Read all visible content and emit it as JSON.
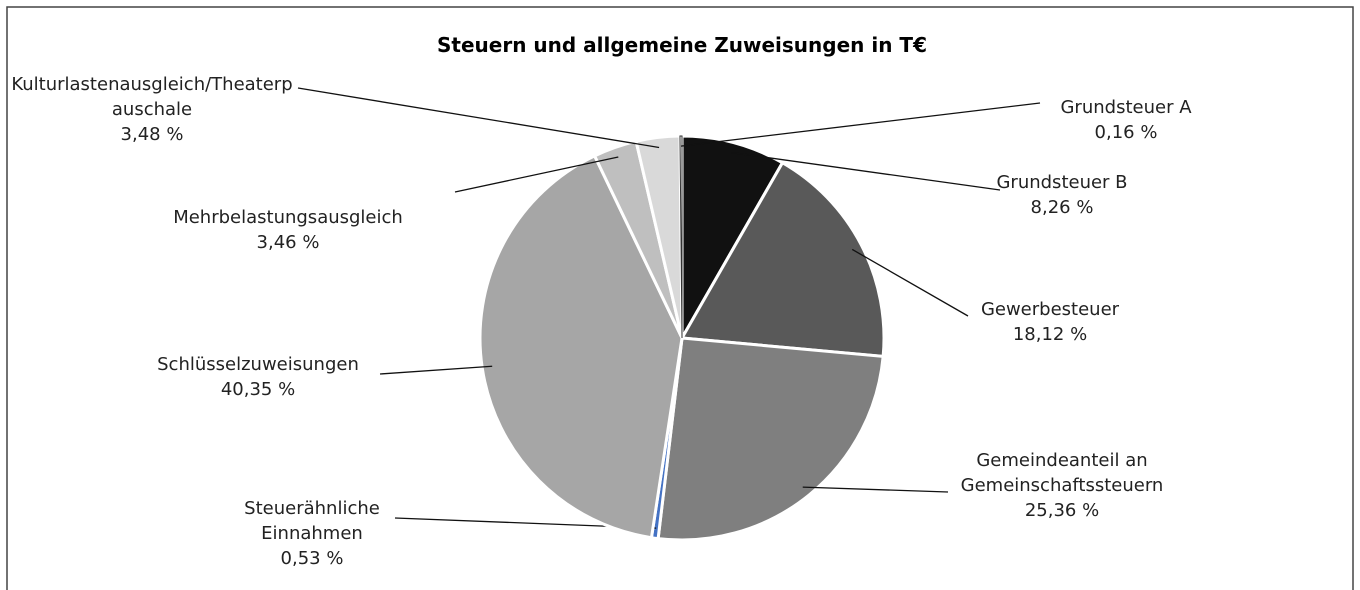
{
  "chart_data": {
    "type": "pie",
    "title": "Steuern und allgemeine Zuweisungen in T€",
    "categories": [
      "Grundsteuer B",
      "Gewerbesteuer",
      "Gemeindeanteil an Gemeinschaftssteuern",
      "Steuerähnliche Einnahmen",
      "Schlüsselzuweisungen",
      "Mehrbelastungsausgleich",
      "Kulturlastenausgleich/Theaterpauschale",
      "Grundsteuer A"
    ],
    "values": [
      8.26,
      18.12,
      25.36,
      0.53,
      40.35,
      3.46,
      3.48,
      0.16
    ],
    "value_labels": [
      "8,26 %",
      "18,12 %",
      "25,36 %",
      "0,53 %",
      "40,35 %",
      "3,46 %",
      "3,48 %",
      "0,16 %"
    ],
    "colors": [
      "#111111",
      "#595959",
      "#7f7f7f",
      "#4472c4",
      "#a6a6a6",
      "#bfbfbf",
      "#d9d9d9",
      "#ffffff"
    ]
  }
}
